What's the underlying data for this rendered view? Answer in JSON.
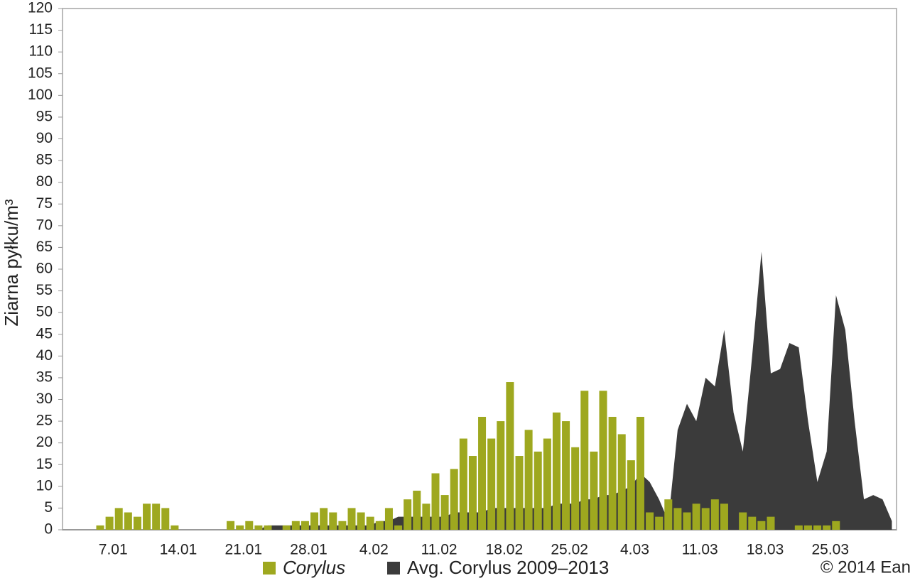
{
  "chart_data": {
    "type": "bar",
    "y_label": "Ziarna pyłku/m³",
    "credit": "© 2014 Ean",
    "categories": [
      null,
      null,
      null,
      null,
      null,
      null,
      "7.01",
      null,
      null,
      null,
      null,
      null,
      null,
      "14.01",
      null,
      null,
      null,
      null,
      null,
      null,
      "21.01",
      null,
      null,
      null,
      null,
      null,
      null,
      "28.01",
      null,
      null,
      null,
      null,
      null,
      null,
      "4.02",
      null,
      null,
      null,
      null,
      null,
      null,
      "11.02",
      null,
      null,
      null,
      null,
      null,
      null,
      "18.02",
      null,
      null,
      null,
      null,
      null,
      null,
      "25.02",
      null,
      null,
      null,
      null,
      null,
      null,
      "4.03",
      null,
      null,
      null,
      null,
      null,
      null,
      "11.03",
      null,
      null,
      null,
      null,
      null,
      null,
      "18.03",
      null,
      null,
      null,
      null,
      null,
      null,
      "25.03",
      null,
      null,
      null,
      null,
      null,
      null
    ],
    "series": [
      {
        "name": "Corylus",
        "color": "#9ea81f",
        "type": "bar",
        "values": [
          0,
          0,
          0,
          0,
          1,
          3,
          5,
          4,
          3,
          6,
          6,
          5,
          1,
          0,
          0,
          0,
          0,
          0,
          2,
          1,
          2,
          1,
          1,
          0,
          1,
          2,
          2,
          4,
          5,
          4,
          2,
          5,
          4,
          3,
          2,
          5,
          1,
          7,
          9,
          6,
          13,
          8,
          14,
          21,
          17,
          26,
          21,
          25,
          34,
          17,
          23,
          18,
          21,
          27,
          25,
          19,
          32,
          18,
          32,
          26,
          22,
          16,
          26,
          4,
          3,
          7,
          5,
          4,
          6,
          5,
          7,
          6,
          0,
          4,
          3,
          2,
          3,
          0,
          0,
          1,
          1,
          1,
          1,
          2,
          0,
          0,
          0,
          0,
          0,
          0
        ]
      },
      {
        "name": "Avg. Corylus 2009–2013",
        "color": "#3b3b3b",
        "type": "area",
        "values": [
          0,
          0,
          0,
          0,
          0,
          0,
          0,
          0,
          0,
          0,
          0,
          0,
          0,
          0,
          0,
          0,
          0,
          0,
          0,
          0,
          0,
          0,
          1,
          1,
          1,
          1,
          1,
          1,
          1,
          1,
          1,
          1,
          1,
          1,
          2,
          2,
          3,
          3,
          3,
          3,
          3,
          3,
          4,
          4,
          4,
          4,
          5,
          5,
          5,
          5,
          5,
          5,
          5,
          6,
          6,
          6,
          7,
          7,
          8,
          8,
          9,
          10,
          13,
          11,
          7,
          2,
          23,
          29,
          25,
          35,
          33,
          46,
          27,
          18,
          40,
          64,
          36,
          37,
          43,
          42,
          25,
          11,
          18,
          54,
          46,
          25,
          7,
          8,
          7,
          2
        ]
      }
    ],
    "ylim": [
      0,
      120
    ],
    "yticks": [
      0,
      5,
      10,
      15,
      20,
      25,
      30,
      35,
      40,
      45,
      50,
      55,
      60,
      65,
      70,
      75,
      80,
      85,
      90,
      95,
      100,
      105,
      110,
      115,
      120
    ]
  }
}
